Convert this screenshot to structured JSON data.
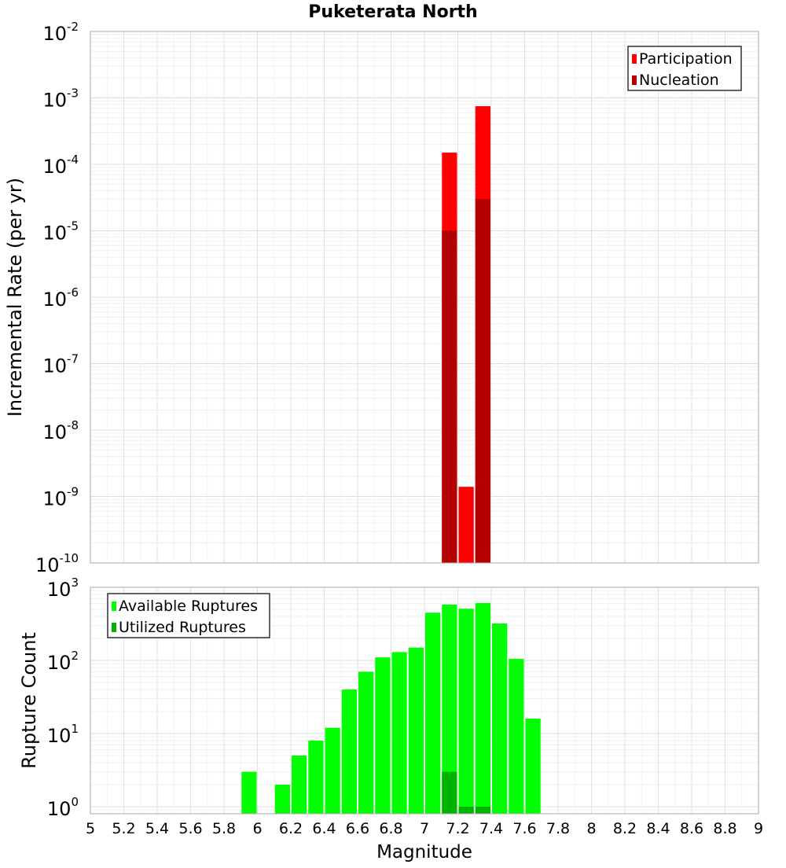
{
  "chart_data": [
    {
      "type": "bar",
      "panel": "top",
      "title": "Puketerata North",
      "xlabel": "Magnitude",
      "ylabel": "Incremental Rate (per yr)",
      "yscale": "log",
      "ylim": [
        1e-10,
        0.01
      ],
      "xlim": [
        5,
        9
      ],
      "bin_width": 0.1,
      "y_ticks": [
        {
          "base": "10",
          "exp": "-10",
          "value": 1e-10
        },
        {
          "base": "10",
          "exp": "-9",
          "value": 1e-09
        },
        {
          "base": "10",
          "exp": "-8",
          "value": 1e-08
        },
        {
          "base": "10",
          "exp": "-7",
          "value": 1e-07
        },
        {
          "base": "10",
          "exp": "-6",
          "value": 1e-06
        },
        {
          "base": "10",
          "exp": "-5",
          "value": 1e-05
        },
        {
          "base": "10",
          "exp": "-4",
          "value": 0.0001
        },
        {
          "base": "10",
          "exp": "-3",
          "value": 0.001
        },
        {
          "base": "10",
          "exp": "-2",
          "value": 0.01
        }
      ],
      "legend": {
        "placement": "top-right",
        "entries": [
          {
            "label": "Participation",
            "color": "#ff0000"
          },
          {
            "label": "Nucleation",
            "color": "#b30000"
          }
        ]
      },
      "series": [
        {
          "name": "Participation",
          "color": "#ff0000",
          "x": [
            7.15,
            7.25,
            7.35
          ],
          "values": [
            0.00015,
            1.4e-09,
            0.00075
          ]
        },
        {
          "name": "Nucleation",
          "color": "#b30000",
          "x": [
            7.15,
            7.35
          ],
          "values": [
            1e-05,
            3e-05
          ]
        }
      ],
      "grid": true
    },
    {
      "type": "bar",
      "panel": "bottom",
      "xlabel": "Magnitude",
      "ylabel": "Rupture Count",
      "yscale": "log",
      "ylim": [
        0.8,
        1000
      ],
      "xlim": [
        5,
        9
      ],
      "bin_width": 0.1,
      "y_ticks": [
        {
          "base": "10",
          "exp": "0",
          "value": 1
        },
        {
          "base": "10",
          "exp": "1",
          "value": 10
        },
        {
          "base": "10",
          "exp": "2",
          "value": 100
        },
        {
          "base": "10",
          "exp": "3",
          "value": 1000
        }
      ],
      "x_tick_labels": [
        "5",
        "5.2",
        "5.4",
        "5.6",
        "5.8",
        "6",
        "6.2",
        "6.4",
        "6.6",
        "6.8",
        "7",
        "7.2",
        "7.4",
        "7.6",
        "7.8",
        "8",
        "8.2",
        "8.4",
        "8.6",
        "8.8",
        "9"
      ],
      "legend": {
        "placement": "top-left",
        "entries": [
          {
            "label": "Available Ruptures",
            "color": "#00ff00"
          },
          {
            "label": "Utilized Ruptures",
            "color": "#00b300"
          }
        ]
      },
      "series": [
        {
          "name": "Available Ruptures",
          "color": "#00ff00",
          "x": [
            5.95,
            6.15,
            6.25,
            6.35,
            6.45,
            6.55,
            6.65,
            6.75,
            6.85,
            6.95,
            7.05,
            7.15,
            7.25,
            7.35,
            7.45,
            7.55,
            7.65
          ],
          "values": [
            3,
            2,
            5,
            8,
            12,
            40,
            70,
            110,
            130,
            150,
            450,
            580,
            510,
            610,
            320,
            105,
            16
          ]
        },
        {
          "name": "Utilized Ruptures",
          "color": "#00b300",
          "x": [
            7.15,
            7.25,
            7.35
          ],
          "values": [
            3,
            1,
            1
          ]
        }
      ],
      "grid": true
    }
  ]
}
